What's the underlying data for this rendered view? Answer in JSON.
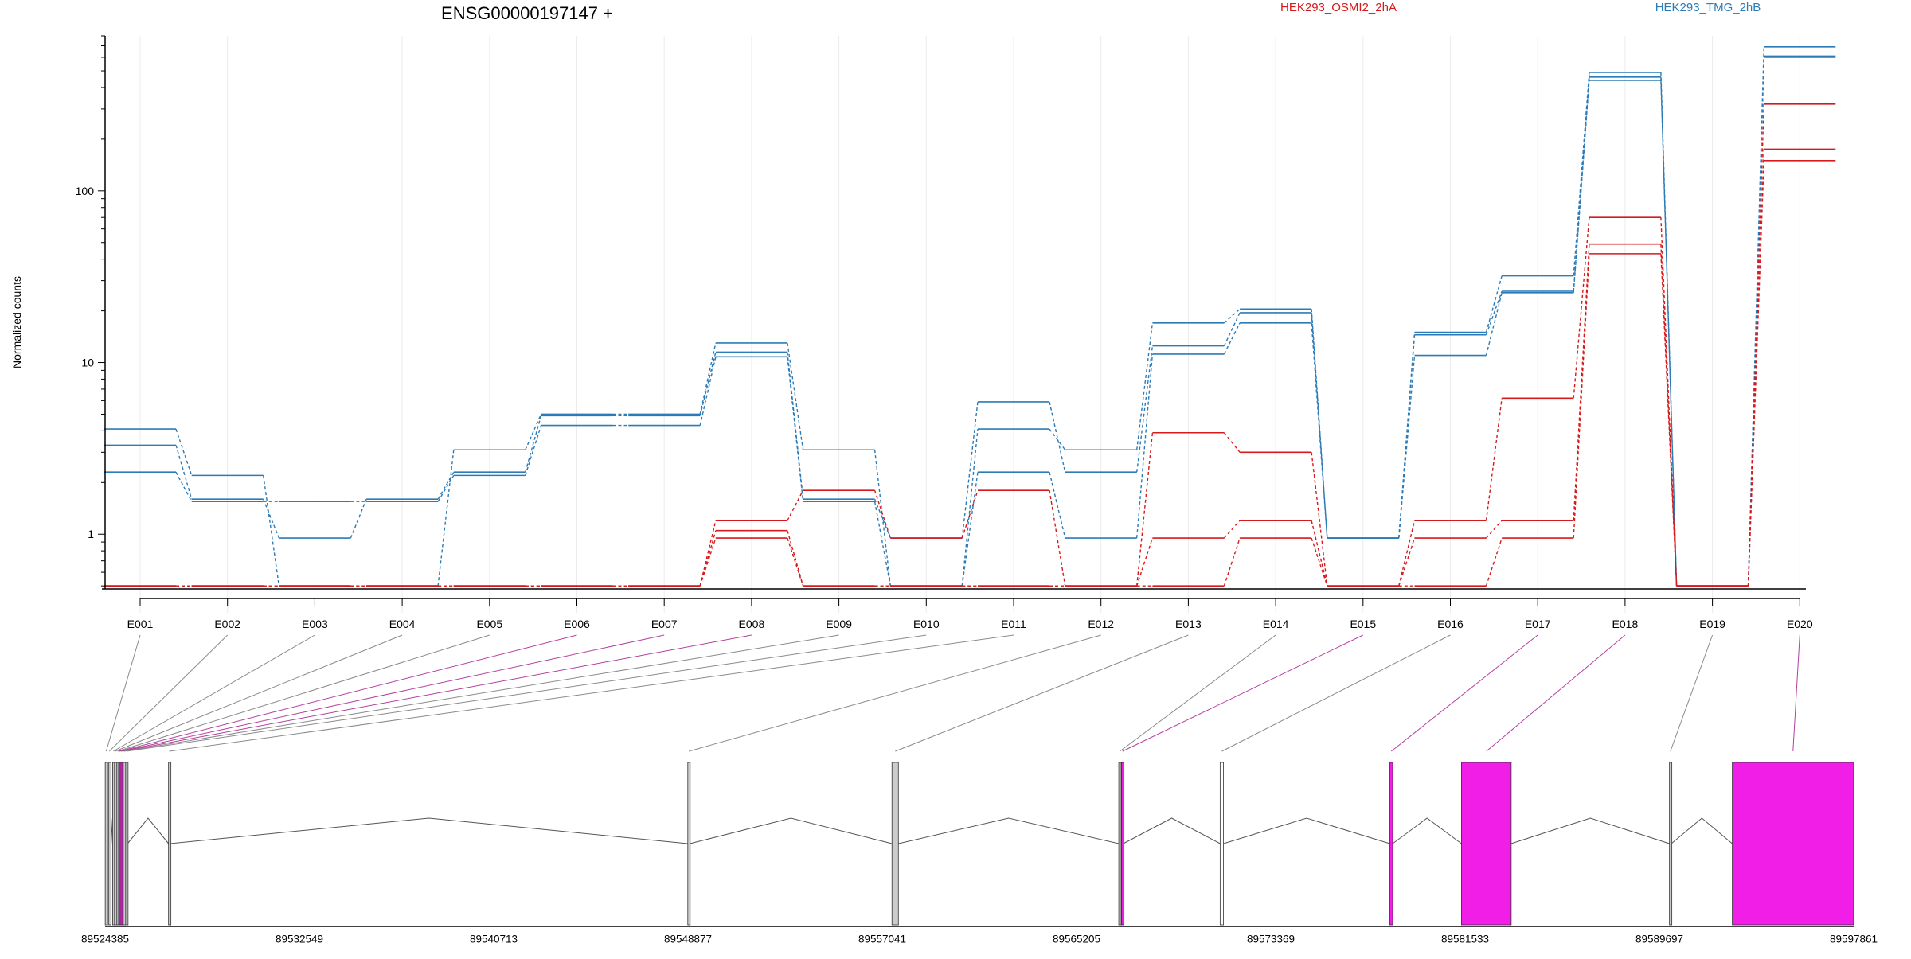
{
  "chart_data": {
    "type": "line",
    "title": "ENSG00000197147 +",
    "ylabel": "Normalized counts",
    "yscale": "log",
    "ylim": [
      0.48,
      800
    ],
    "yticks": [
      1,
      10,
      100
    ],
    "ytick_labels": [
      "1",
      "10",
      "100"
    ],
    "categories": [
      "E001",
      "E002",
      "E003",
      "E004",
      "E005",
      "E006",
      "E007",
      "E008",
      "E009",
      "E010",
      "E011",
      "E012",
      "E013",
      "E014",
      "E015",
      "E016",
      "E017",
      "E018",
      "E019",
      "E020"
    ],
    "legend": [
      "HEK293_OSMI2_2hA",
      "HEK293_TMG_2hB"
    ],
    "legend_colors": [
      "#d7191c",
      "#2c7bb6"
    ],
    "series": [
      {
        "group": 1,
        "color": "#2c7bb6",
        "values": [
          4.1,
          2.2,
          0.5,
          0.5,
          3.1,
          5.0,
          5.0,
          13.0,
          3.1,
          0.5,
          4.1,
          3.1,
          17.0,
          20.5,
          0.95,
          15.0,
          32.0,
          490,
          0.5,
          690
        ]
      },
      {
        "group": 1,
        "color": "#2c7bb6",
        "values": [
          3.3,
          1.6,
          0.95,
          1.6,
          2.3,
          4.9,
          4.9,
          11.5,
          1.6,
          0.95,
          5.9,
          2.3,
          12.5,
          19.5,
          0.95,
          14.5,
          26.0,
          460,
          0.5,
          610
        ]
      },
      {
        "group": 1,
        "color": "#2c7bb6",
        "values": [
          2.3,
          1.55,
          1.55,
          1.55,
          2.2,
          4.3,
          4.3,
          10.8,
          1.55,
          0.5,
          2.3,
          0.95,
          11.2,
          17.0,
          0.95,
          11.0,
          25.5,
          440,
          0.5,
          600
        ]
      },
      {
        "group": 0,
        "color": "#d7191c",
        "values": [
          0.5,
          0.5,
          0.5,
          0.5,
          0.5,
          0.5,
          0.5,
          1.2,
          1.8,
          0.95,
          1.8,
          0.5,
          3.9,
          3.0,
          0.5,
          1.2,
          6.2,
          70,
          0.5,
          320
        ]
      },
      {
        "group": 0,
        "color": "#d7191c",
        "values": [
          0.5,
          0.5,
          0.5,
          0.5,
          0.5,
          0.5,
          0.5,
          1.05,
          0.5,
          0.5,
          0.5,
          0.5,
          0.95,
          1.2,
          0.5,
          0.95,
          1.2,
          49,
          0.5,
          175
        ]
      },
      {
        "group": 0,
        "color": "#d7191c",
        "values": [
          0.5,
          0.5,
          0.5,
          0.5,
          0.5,
          0.5,
          0.5,
          0.95,
          0.5,
          0.5,
          0.5,
          0.5,
          0.5,
          0.95,
          0.5,
          0.5,
          0.95,
          43,
          0.5,
          150
        ]
      }
    ],
    "gene_model": {
      "start": 89524385,
      "end": 89597861,
      "ticks": [
        89524385,
        89532549,
        89540713,
        89548877,
        89557041,
        89565205,
        89573369,
        89581533,
        89589697,
        89597861
      ],
      "tick_labels": [
        "89524385",
        "89532549",
        "89540713",
        "89548877",
        "89557041",
        "89565205",
        "89573369",
        "89581533",
        "89589697",
        "89597861"
      ],
      "exons": [
        {
          "id": "E001",
          "start": 89524390,
          "end": 89524470,
          "color": "#cccccc"
        },
        {
          "id": "E002",
          "start": 89524540,
          "end": 89524580,
          "color": "#cccccc"
        },
        {
          "id": "E003",
          "start": 89524700,
          "end": 89524760,
          "color": "#cccccc"
        },
        {
          "id": "E004",
          "start": 89524780,
          "end": 89524840,
          "color": "#cccccc"
        },
        {
          "id": "E005",
          "start": 89524880,
          "end": 89524940,
          "color": "#cccccc"
        },
        {
          "id": "E006",
          "start": 89524950,
          "end": 89525010,
          "color": "#f01ee6"
        },
        {
          "id": "E007",
          "start": 89525020,
          "end": 89525070,
          "color": "#f01ee6"
        },
        {
          "id": "E008",
          "start": 89525090,
          "end": 89525140,
          "color": "#f01ee6"
        },
        {
          "id": "E009",
          "start": 89525150,
          "end": 89525230,
          "color": "#cccccc"
        },
        {
          "id": "E010",
          "start": 89525250,
          "end": 89525330,
          "color": "#cccccc"
        },
        {
          "id": "E011",
          "start": 89527050,
          "end": 89527110,
          "color": "#cccccc"
        },
        {
          "id": "E012",
          "start": 89548870,
          "end": 89548960,
          "color": "#cccccc"
        },
        {
          "id": "E013",
          "start": 89557450,
          "end": 89557720,
          "color": "#cccccc"
        },
        {
          "id": "E014",
          "start": 89566980,
          "end": 89567070,
          "color": "#cccccc"
        },
        {
          "id": "E015",
          "start": 89567100,
          "end": 89567170,
          "color": "#f01ee6"
        },
        {
          "id": "E016",
          "start": 89571240,
          "end": 89571380,
          "color": "#ffffff"
        },
        {
          "id": "E017",
          "start": 89578370,
          "end": 89578490,
          "color": "#f01ee6"
        },
        {
          "id": "E018",
          "start": 89581380,
          "end": 89583470,
          "color": "#f01ee6"
        },
        {
          "id": "E019",
          "start": 89590120,
          "end": 89590200,
          "color": "#cccccc"
        },
        {
          "id": "E020",
          "start": 89592760,
          "end": 89597861,
          "color": "#f01ee6"
        }
      ]
    }
  }
}
